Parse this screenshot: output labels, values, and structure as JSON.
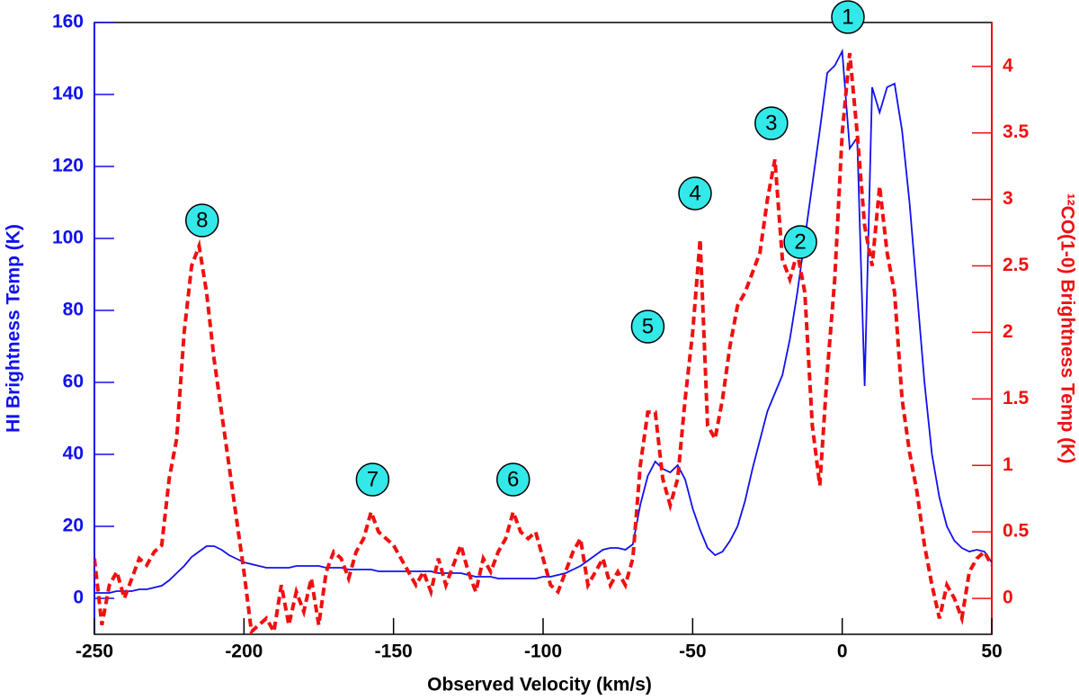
{
  "chart_data": {
    "type": "line",
    "xlabel": "Observed Velocity (km/s)",
    "ylabel": "HI Brightness Temp (K)",
    "y2label": "¹²CO(1-0) Brightness Temp (K)",
    "xlim": [
      -250,
      50
    ],
    "xticks": [
      -250,
      -200,
      -150,
      -100,
      -50,
      0,
      50
    ],
    "ylim": [
      -10,
      160
    ],
    "yticks": [
      0,
      20,
      40,
      60,
      80,
      100,
      120,
      140,
      160
    ],
    "y2lim": [
      -0.27,
      4.33
    ],
    "y2ticks": [
      0,
      0.5,
      1,
      1.5,
      2,
      2.5,
      3,
      3.5,
      4
    ],
    "x": [
      -250,
      -247.5,
      -245,
      -242.5,
      -240,
      -237.5,
      -235,
      -232.5,
      -230,
      -227.5,
      -225,
      -222.5,
      -220,
      -217.5,
      -215,
      -212.5,
      -210,
      -207.5,
      -205,
      -202.5,
      -200,
      -197.5,
      -195,
      -192.5,
      -190,
      -187.5,
      -185,
      -182.5,
      -180,
      -177.5,
      -175,
      -172.5,
      -170,
      -167.5,
      -165,
      -162.5,
      -160,
      -157.5,
      -155,
      -152.5,
      -150,
      -147.5,
      -145,
      -142.5,
      -140,
      -137.5,
      -135,
      -132.5,
      -130,
      -127.5,
      -125,
      -122.5,
      -120,
      -117.5,
      -115,
      -112.5,
      -110,
      -107.5,
      -105,
      -102.5,
      -100,
      -97.5,
      -95,
      -92.5,
      -90,
      -87.5,
      -85,
      -82.5,
      -80,
      -77.5,
      -75,
      -72.5,
      -70,
      -67.5,
      -65,
      -62.5,
      -60,
      -57.5,
      -55,
      -52.5,
      -50,
      -47.5,
      -45,
      -42.5,
      -40,
      -37.5,
      -35,
      -32.5,
      -30,
      -27.5,
      -25,
      -22.5,
      -20,
      -17.5,
      -15,
      -12.5,
      -10,
      -7.5,
      -5,
      -2.5,
      0,
      2.5,
      5,
      7.5,
      10,
      12.5,
      15,
      17.5,
      20,
      22.5,
      25,
      27.5,
      30,
      32.5,
      35,
      37.5,
      40,
      42.5,
      45,
      47.5,
      50
    ],
    "series": [
      {
        "name": "HI",
        "color": "#1010f0",
        "dash": false,
        "axis": "y",
        "values": [
          1.5,
          1.5,
          1.5,
          2,
          2,
          2,
          2.5,
          2.5,
          3,
          3.5,
          5,
          7,
          9,
          11.5,
          13,
          14.5,
          14.5,
          13.5,
          12,
          11,
          10,
          9.5,
          9,
          8.5,
          8.5,
          8.5,
          8.5,
          9,
          9,
          9,
          9,
          8.5,
          8.5,
          8.5,
          8,
          8,
          8,
          8,
          7.5,
          7.5,
          7.5,
          7.5,
          7.5,
          7.5,
          7.5,
          7.5,
          7,
          7,
          7,
          7,
          6.5,
          6,
          6,
          6,
          5.5,
          5.5,
          5.5,
          5.5,
          5.5,
          5.5,
          6,
          6,
          6.5,
          7,
          8,
          9,
          10.5,
          12,
          13.5,
          14,
          14,
          13.5,
          15,
          26,
          34,
          38,
          36,
          35,
          37,
          33,
          25,
          19,
          14,
          12,
          13,
          16,
          20,
          27,
          36,
          44,
          52,
          57,
          62,
          72,
          85,
          100,
          115,
          130,
          146,
          148,
          152,
          125,
          128,
          59,
          142,
          135,
          142,
          143,
          130,
          110,
          85,
          60,
          40,
          28,
          20,
          16,
          14,
          13,
          13.5,
          13,
          10
        ]
      },
      {
        "name": "CO",
        "color": "#f01010",
        "dash": true,
        "axis": "y2",
        "values": [
          0.3,
          -0.2,
          0.1,
          0.2,
          0,
          0.15,
          0.3,
          0.25,
          0.35,
          0.4,
          0.9,
          1.2,
          2.0,
          2.5,
          2.65,
          2.3,
          1.8,
          1.4,
          1.0,
          0.6,
          0.2,
          -0.25,
          -0.2,
          -0.15,
          -0.25,
          0.1,
          -0.2,
          0.05,
          -0.1,
          0.15,
          -0.2,
          0.2,
          0.35,
          0.3,
          0.15,
          0.35,
          0.45,
          0.65,
          0.5,
          0.45,
          0.4,
          0.3,
          0.2,
          0.1,
          0.2,
          0.05,
          0.3,
          0.1,
          0.25,
          0.4,
          0.2,
          0.05,
          0.3,
          0.2,
          0.35,
          0.45,
          0.65,
          0.5,
          0.45,
          0.5,
          0.3,
          0.1,
          0.05,
          0.2,
          0.35,
          0.45,
          0.1,
          0.2,
          0.3,
          0.1,
          0.2,
          0.1,
          0.3,
          1.0,
          1.4,
          1.4,
          0.9,
          0.7,
          0.9,
          1.5,
          2.0,
          2.7,
          1.3,
          1.2,
          1.5,
          1.9,
          2.2,
          2.3,
          2.45,
          2.6,
          3.0,
          3.3,
          2.55,
          2.4,
          2.6,
          2.3,
          1.3,
          0.85,
          1.7,
          2.4,
          3.5,
          4.1,
          3.5,
          2.8,
          2.5,
          3.1,
          2.6,
          2.3,
          1.5,
          1.1,
          0.8,
          0.4,
          0.1,
          -0.15,
          0.1,
          0,
          -0.15,
          0.2,
          0.3,
          0.35,
          0.25
        ]
      }
    ],
    "annotations": [
      {
        "text": "1",
        "x": 1.9,
        "y": 161.5
      },
      {
        "text": "2",
        "x": -14,
        "y": 99
      },
      {
        "text": "3",
        "x": -23.7,
        "y": 132
      },
      {
        "text": "4",
        "x": -49.2,
        "y": 112.5
      },
      {
        "text": "5",
        "x": -65,
        "y": 75.5
      },
      {
        "text": "6",
        "x": -110,
        "y": 33
      },
      {
        "text": "7",
        "x": -157,
        "y": 33
      },
      {
        "text": "8",
        "x": -214,
        "y": 105
      }
    ],
    "annotation_color": "#33e8e8"
  }
}
